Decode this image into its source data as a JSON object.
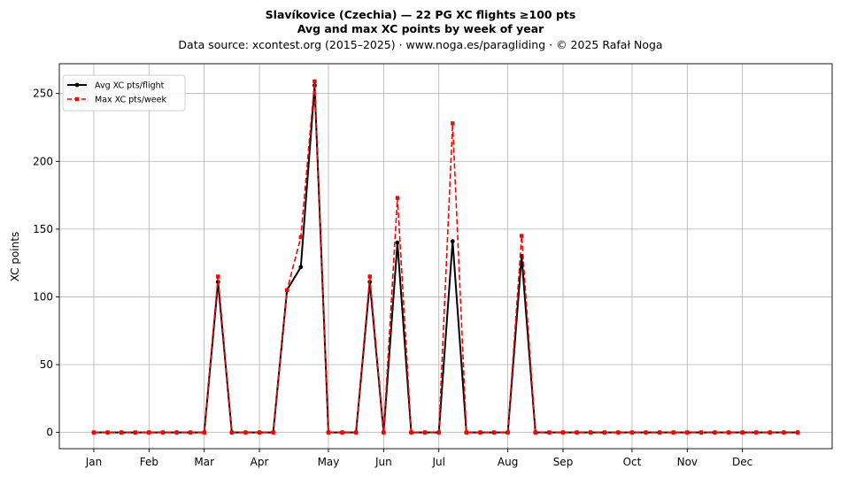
{
  "chart_data": {
    "type": "line",
    "title_line1": "Slavíkovice (Czechia)  —  22 PG XC flights ≥100 pts",
    "title_line2": "Avg and max XC points by week of year",
    "subtitle": "Data source: xcontest.org (2015–2025)  ·  www.noga.es/paragliding  ·  © 2025 Rafał Noga",
    "ylabel": "XC points",
    "xlabel": "",
    "ylim": [
      -12,
      272
    ],
    "xlim": [
      -2.5,
      53.5
    ],
    "yticks": [
      0,
      50,
      100,
      150,
      200,
      250
    ],
    "xticks": [
      {
        "week": 0,
        "label": "Jan"
      },
      {
        "week": 4,
        "label": "Feb"
      },
      {
        "week": 8,
        "label": "Mar"
      },
      {
        "week": 12,
        "label": "Apr"
      },
      {
        "week": 17,
        "label": "May"
      },
      {
        "week": 21,
        "label": "Jun"
      },
      {
        "week": 25,
        "label": "Jul"
      },
      {
        "week": 30,
        "label": "Aug"
      },
      {
        "week": 34,
        "label": "Sep"
      },
      {
        "week": 39,
        "label": "Oct"
      },
      {
        "week": 43,
        "label": "Nov"
      },
      {
        "week": 47,
        "label": "Dec"
      }
    ],
    "grid": true,
    "legend_position": "top-left",
    "x": [
      0,
      1,
      2,
      3,
      4,
      5,
      6,
      7,
      8,
      9,
      10,
      11,
      12,
      13,
      14,
      15,
      16,
      17,
      18,
      19,
      20,
      21,
      22,
      23,
      24,
      25,
      26,
      27,
      28,
      29,
      30,
      31,
      32,
      33,
      34,
      35,
      36,
      37,
      38,
      39,
      40,
      41,
      42,
      43,
      44,
      45,
      46,
      47,
      48,
      49,
      50,
      51
    ],
    "series": [
      {
        "name": "Avg XC pts/flight",
        "color": "#000000",
        "style": "solid",
        "marker": "circle",
        "values": [
          0,
          0,
          0,
          0,
          0,
          0,
          0,
          0,
          0,
          111,
          0,
          0,
          0,
          0,
          105,
          122,
          256,
          0,
          0,
          0,
          111,
          0,
          140,
          0,
          0,
          0,
          141,
          0,
          0,
          0,
          0,
          130,
          0,
          0,
          0,
          0,
          0,
          0,
          0,
          0,
          0,
          0,
          0,
          0,
          0,
          0,
          0,
          0,
          0,
          0,
          0,
          0
        ]
      },
      {
        "name": "Max XC pts/week",
        "color": "#ff0000",
        "style": "dashed",
        "marker": "square",
        "values": [
          0,
          0,
          0,
          0,
          0,
          0,
          0,
          0,
          0,
          115,
          0,
          0,
          0,
          0,
          105,
          144,
          259,
          0,
          0,
          0,
          115,
          0,
          173,
          0,
          0,
          0,
          228,
          0,
          0,
          0,
          0,
          145,
          0,
          0,
          0,
          0,
          0,
          0,
          0,
          0,
          0,
          0,
          0,
          0,
          0,
          0,
          0,
          0,
          0,
          0,
          0,
          0
        ]
      }
    ]
  }
}
